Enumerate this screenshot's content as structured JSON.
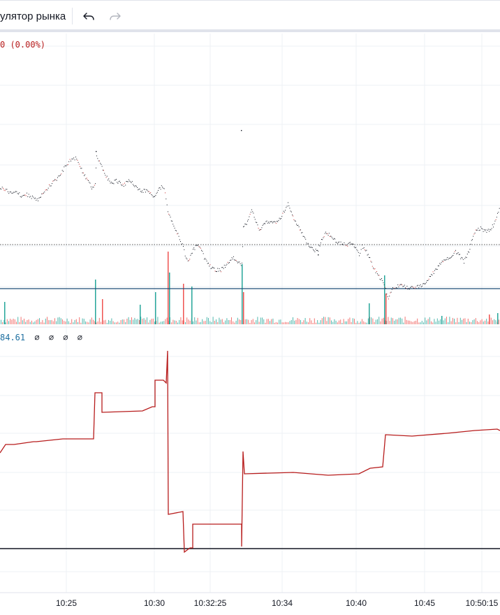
{
  "toolbar": {
    "label": "улятор рынка",
    "undo_icon": "undo-icon",
    "redo_icon": "redo-icon"
  },
  "legend": {
    "main_change": "0 (0.00%)",
    "indicator_value": "84.61",
    "indicator_empty_values": [
      "∅",
      "∅",
      "∅",
      "∅"
    ]
  },
  "colors": {
    "price_dots": "#131722",
    "buy_volume": "#26a69a",
    "sell_volume": "#ef5350",
    "indicator_line": "#b71c1c",
    "horizontal_line": "#1e4d78",
    "zero_line": "#131722",
    "grid": "#eef0f4"
  },
  "chart_data": {
    "type": "line",
    "x_axis": {
      "tick_labels": [
        "10:25",
        "10:30",
        "10:32:25",
        "10:34",
        "10:40",
        "10:45",
        "10:50:15"
      ]
    },
    "price_series": {
      "style": "dots",
      "points": [
        [
          0,
          268
        ],
        [
          8,
          272
        ],
        [
          15,
          276
        ],
        [
          22,
          272
        ],
        [
          30,
          280
        ],
        [
          38,
          278
        ],
        [
          46,
          282
        ],
        [
          54,
          286
        ],
        [
          62,
          276
        ],
        [
          70,
          266
        ],
        [
          78,
          258
        ],
        [
          86,
          250
        ],
        [
          94,
          236
        ],
        [
          101,
          228
        ],
        [
          108,
          226
        ],
        [
          114,
          236
        ],
        [
          120,
          250
        ],
        [
          126,
          260
        ],
        [
          131,
          268
        ],
        [
          136,
          262
        ],
        [
          138,
          220
        ],
        [
          142,
          232
        ],
        [
          148,
          244
        ],
        [
          154,
          256
        ],
        [
          160,
          262
        ],
        [
          166,
          258
        ],
        [
          172,
          262
        ],
        [
          178,
          264
        ],
        [
          184,
          256
        ],
        [
          190,
          262
        ],
        [
          196,
          268
        ],
        [
          202,
          274
        ],
        [
          208,
          272
        ],
        [
          214,
          276
        ],
        [
          220,
          280
        ],
        [
          226,
          272
        ],
        [
          232,
          266
        ],
        [
          236,
          274
        ],
        [
          240,
          302
        ],
        [
          246,
          316
        ],
        [
          252,
          330
        ],
        [
          258,
          344
        ],
        [
          262,
          354
        ],
        [
          266,
          368
        ],
        [
          270,
          372
        ],
        [
          276,
          358
        ],
        [
          282,
          350
        ],
        [
          288,
          358
        ],
        [
          292,
          368
        ],
        [
          298,
          378
        ],
        [
          304,
          384
        ],
        [
          310,
          386
        ],
        [
          316,
          386
        ],
        [
          322,
          380
        ],
        [
          328,
          374
        ],
        [
          334,
          368
        ],
        [
          340,
          376
        ],
        [
          346,
          378
        ],
        [
          348,
          322
        ],
        [
          354,
          318
        ],
        [
          360,
          300
        ],
        [
          366,
          316
        ],
        [
          372,
          330
        ],
        [
          378,
          320
        ],
        [
          384,
          316
        ],
        [
          390,
          318
        ],
        [
          396,
          316
        ],
        [
          402,
          312
        ],
        [
          408,
          298
        ],
        [
          412,
          290
        ],
        [
          418,
          308
        ],
        [
          424,
          320
        ],
        [
          430,
          330
        ],
        [
          436,
          340
        ],
        [
          442,
          352
        ],
        [
          448,
          356
        ],
        [
          454,
          360
        ],
        [
          460,
          342
        ],
        [
          466,
          332
        ],
        [
          472,
          336
        ],
        [
          478,
          342
        ],
        [
          484,
          348
        ],
        [
          490,
          348
        ],
        [
          496,
          350
        ],
        [
          502,
          348
        ],
        [
          508,
          352
        ],
        [
          514,
          364
        ],
        [
          518,
          352
        ],
        [
          522,
          356
        ],
        [
          528,
          366
        ],
        [
          534,
          382
        ],
        [
          540,
          392
        ],
        [
          546,
          400
        ],
        [
          552,
          414
        ],
        [
          556,
          426
        ],
        [
          562,
          412
        ],
        [
          568,
          410
        ],
        [
          574,
          408
        ],
        [
          580,
          410
        ],
        [
          586,
          412
        ],
        [
          592,
          410
        ],
        [
          598,
          410
        ],
        [
          604,
          408
        ],
        [
          610,
          404
        ],
        [
          616,
          394
        ],
        [
          622,
          388
        ],
        [
          628,
          380
        ],
        [
          634,
          374
        ],
        [
          640,
          370
        ],
        [
          646,
          366
        ],
        [
          652,
          360
        ],
        [
          658,
          366
        ],
        [
          664,
          374
        ],
        [
          670,
          362
        ],
        [
          676,
          342
        ],
        [
          682,
          328
        ],
        [
          688,
          326
        ],
        [
          694,
          330
        ],
        [
          700,
          330
        ],
        [
          706,
          322
        ],
        [
          712,
          306
        ],
        [
          716,
          296
        ]
      ],
      "outlier_points": [
        [
          345,
          186
        ],
        [
          137,
          216
        ],
        [
          455,
          364
        ]
      ]
    },
    "price_reference_line": {
      "style": "dotted",
      "level_y": 350
    },
    "horizontal_line": {
      "level_y": 413
    },
    "volume_bars": [
      [
        6,
        432,
        "buy"
      ],
      [
        136,
        400,
        "buy"
      ],
      [
        146,
        428,
        "sell"
      ],
      [
        200,
        436,
        "buy"
      ],
      [
        222,
        418,
        "buy"
      ],
      [
        240,
        360,
        "sell"
      ],
      [
        242,
        390,
        "buy"
      ],
      [
        262,
        406,
        "sell"
      ],
      [
        274,
        410,
        "buy"
      ],
      [
        346,
        378,
        "buy"
      ],
      [
        348,
        418,
        "sell"
      ],
      [
        528,
        434,
        "buy"
      ],
      [
        550,
        394,
        "buy"
      ],
      [
        552,
        420,
        "sell"
      ],
      [
        632,
        452,
        "buy"
      ],
      [
        700,
        450,
        "sell"
      ],
      [
        712,
        448,
        "buy"
      ]
    ],
    "indicator_series": {
      "style": "step",
      "points": [
        [
          0,
          648
        ],
        [
          8,
          636
        ],
        [
          20,
          636
        ],
        [
          48,
          632
        ],
        [
          52,
          632
        ],
        [
          90,
          628
        ],
        [
          134,
          628
        ],
        [
          136,
          562
        ],
        [
          146,
          562
        ],
        [
          146,
          590
        ],
        [
          204,
          588
        ],
        [
          218,
          582
        ],
        [
          222,
          582
        ],
        [
          222,
          544
        ],
        [
          234,
          544
        ],
        [
          238,
          548
        ],
        [
          240,
          502
        ],
        [
          241,
          736
        ],
        [
          262,
          732
        ],
        [
          264,
          790
        ],
        [
          272,
          784
        ],
        [
          276,
          784
        ],
        [
          276,
          750
        ],
        [
          346,
          750
        ],
        [
          346,
          782
        ],
        [
          348,
          646
        ],
        [
          350,
          678
        ],
        [
          420,
          676
        ],
        [
          470,
          680
        ],
        [
          514,
          678
        ],
        [
          530,
          670
        ],
        [
          548,
          668
        ],
        [
          552,
          622
        ],
        [
          590,
          624
        ],
        [
          640,
          620
        ],
        [
          680,
          616
        ],
        [
          712,
          614
        ],
        [
          716,
          616
        ]
      ]
    },
    "indicator_zero_level_y": 785,
    "grid": true,
    "legend": "none"
  }
}
